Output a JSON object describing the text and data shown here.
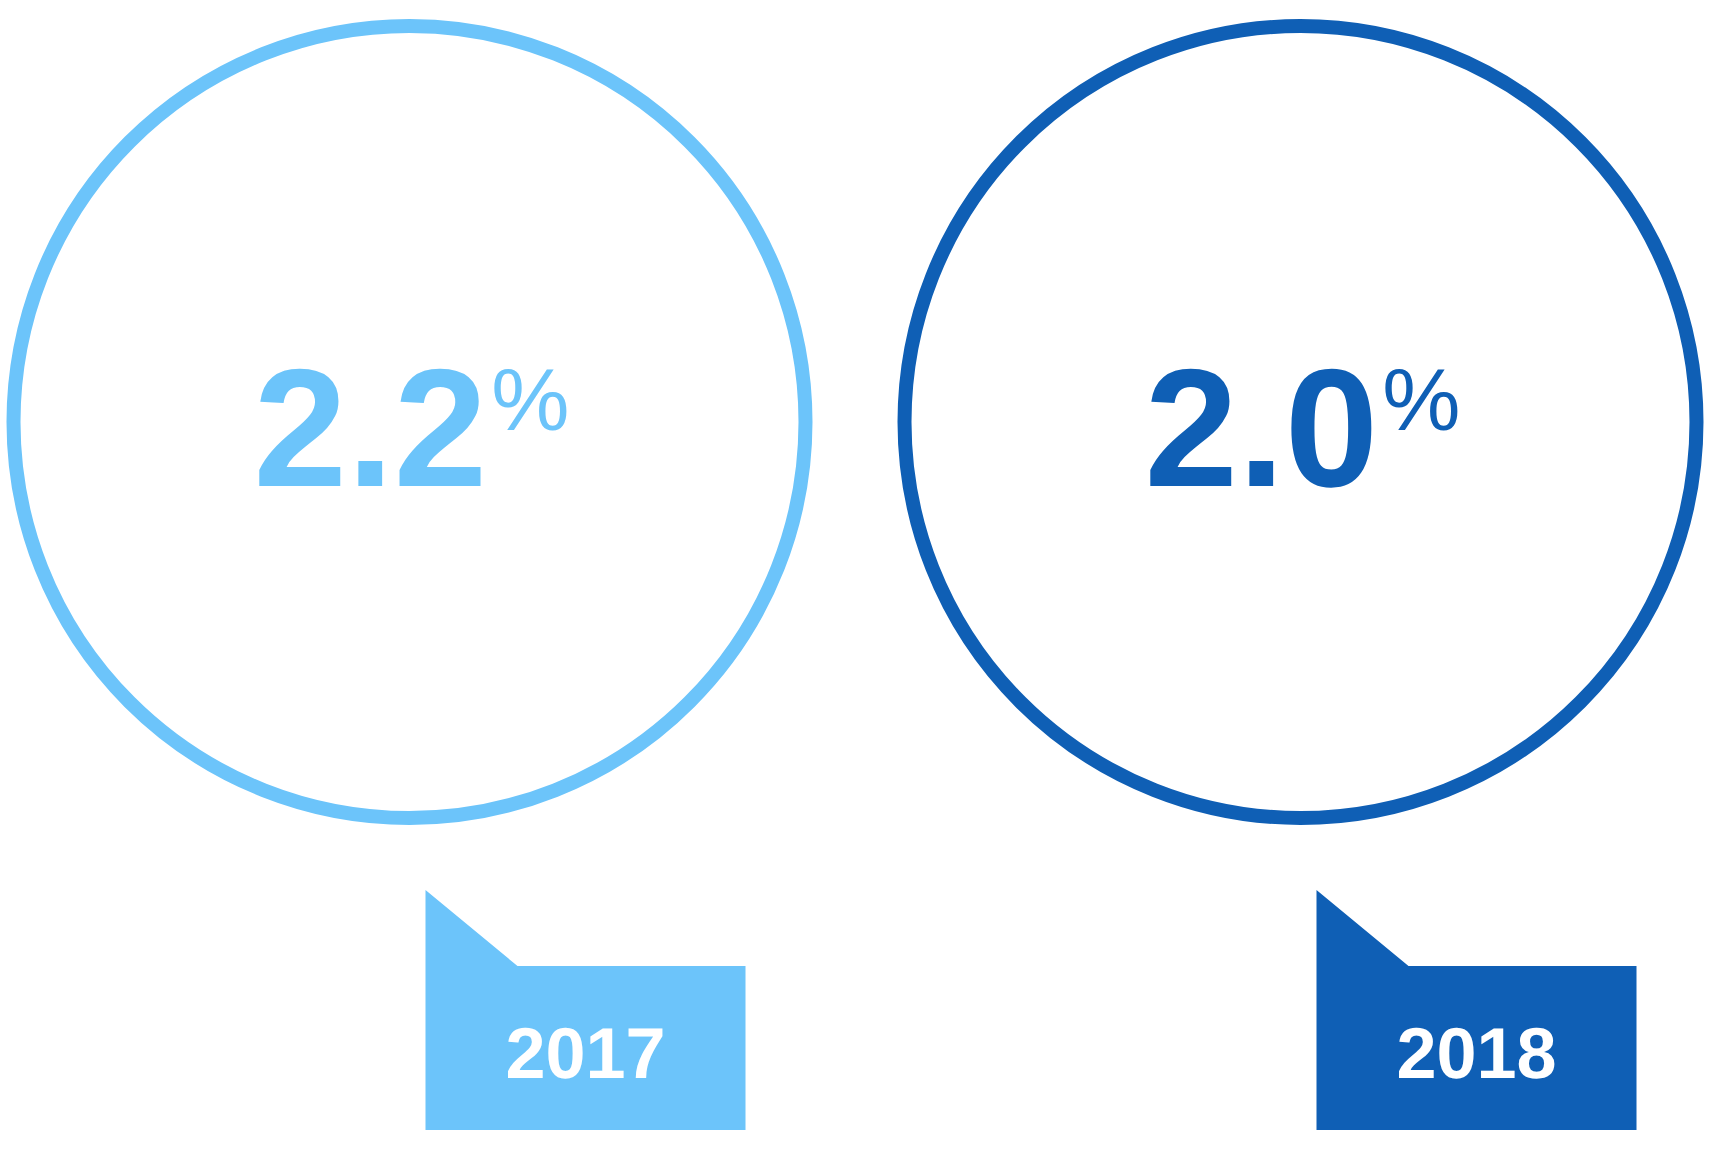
{
  "chart_data": {
    "type": "other",
    "categories": [
      "2017",
      "2018"
    ],
    "values": [
      2.2,
      2.0
    ],
    "value_labels": [
      "2.2%",
      "2.0%"
    ],
    "colors": [
      "#6cc4fa",
      "#0f5fb5"
    ]
  }
}
